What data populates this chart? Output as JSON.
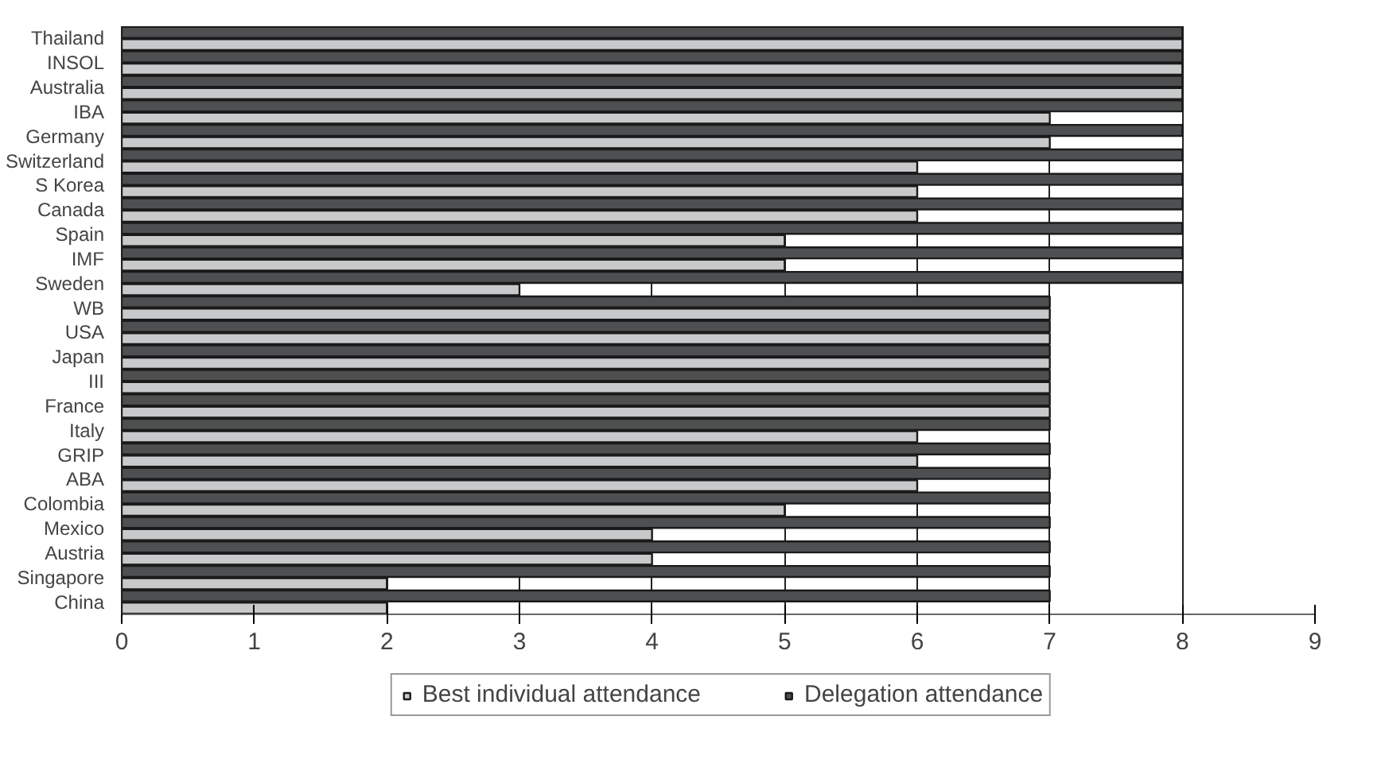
{
  "chart_data": {
    "type": "bar",
    "orientation": "horizontal",
    "categories": [
      "Thailand",
      "INSOL",
      "Australia",
      "IBA",
      "Germany",
      "Switzerland",
      "S Korea",
      "Canada",
      "Spain",
      "IMF",
      "Sweden",
      "WB",
      "USA",
      "Japan",
      "III",
      "France",
      "Italy",
      "GRIP",
      "ABA",
      "Colombia",
      "Mexico",
      "Austria",
      "Singapore",
      "China"
    ],
    "series": [
      {
        "name": "Best individual attendance",
        "color": "#c8c9cb",
        "values": [
          8,
          8,
          8,
          7,
          7,
          6,
          6,
          6,
          5,
          5,
          3,
          7,
          7,
          7,
          7,
          7,
          6,
          6,
          6,
          5,
          4,
          4,
          2,
          2
        ]
      },
      {
        "name": "Delegation attendance",
        "color": "#4d4f51",
        "values": [
          8,
          8,
          8,
          8,
          8,
          8,
          8,
          8,
          8,
          8,
          8,
          7,
          7,
          7,
          7,
          7,
          7,
          7,
          7,
          7,
          7,
          7,
          7,
          7
        ]
      }
    ],
    "xlim": [
      0,
      9
    ],
    "xticks": [
      0,
      1,
      2,
      3,
      4,
      5,
      6,
      7,
      8,
      9
    ],
    "grid": "x",
    "legend": "bottom"
  }
}
